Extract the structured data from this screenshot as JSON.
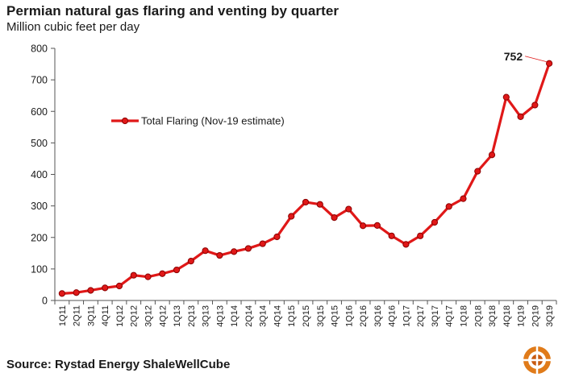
{
  "header": {
    "title": "Permian natural gas flaring and venting by quarter",
    "subtitle": "Million cubic feet per day"
  },
  "footer": {
    "source": "Source: Rystad Energy ShaleWellCube"
  },
  "colors": {
    "series": "#e01818",
    "marker_edge": "#8b0000",
    "axis": "#555555",
    "logo_outer": "#e07b1a",
    "logo_inner": "#c85a10"
  },
  "icons": {
    "logo": "rystad-globe-icon"
  },
  "chart_data": {
    "type": "line",
    "title": "Permian natural gas flaring and venting by quarter",
    "subtitle": "Million cubic feet per day",
    "xlabel": "",
    "ylabel": "",
    "ylim": [
      0,
      800
    ],
    "yticks": [
      0,
      100,
      200,
      300,
      400,
      500,
      600,
      700,
      800
    ],
    "grid": false,
    "legend_position": "upper-left",
    "categories": [
      "1Q11",
      "2Q11",
      "3Q11",
      "4Q11",
      "1Q12",
      "2Q12",
      "3Q12",
      "4Q12",
      "1Q13",
      "2Q13",
      "3Q13",
      "4Q13",
      "1Q14",
      "2Q14",
      "3Q14",
      "4Q14",
      "1Q15",
      "2Q15",
      "3Q15",
      "4Q15",
      "1Q16",
      "2Q16",
      "3Q16",
      "4Q16",
      "1Q17",
      "2Q17",
      "3Q17",
      "4Q17",
      "1Q18",
      "2Q18",
      "3Q18",
      "4Q18",
      "1Q19",
      "2Q19",
      "3Q19"
    ],
    "series": [
      {
        "name": "Total Flaring (Nov-19 estimate)",
        "values": [
          22,
          25,
          32,
          40,
          46,
          80,
          75,
          85,
          97,
          125,
          158,
          143,
          155,
          165,
          180,
          202,
          267,
          312,
          305,
          263,
          290,
          237,
          238,
          205,
          178,
          205,
          248,
          298,
          323,
          410,
          462,
          645,
          583,
          620,
          752
        ]
      }
    ],
    "annotations": [
      {
        "label": "752",
        "category": "3Q19",
        "value": 752
      }
    ]
  }
}
